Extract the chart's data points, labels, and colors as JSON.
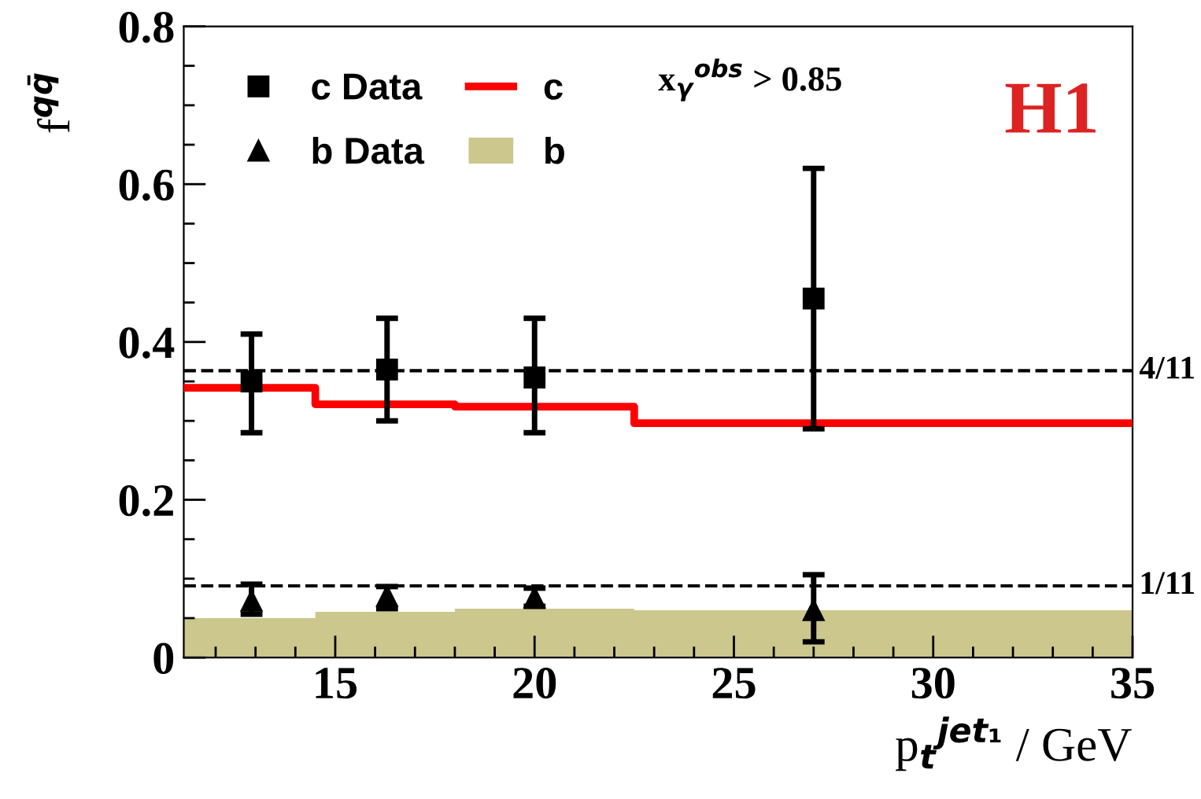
{
  "chart_data": {
    "type": "scatter",
    "ylabel": "f$^{qq̄}$",
    "xlabel": "p$_{t}$$^{jet₁}$ / GeV",
    "annotations": [
      "x$_{γ}$$^{obs}$ > 0.85",
      "H1",
      {
        "text": "4/11",
        "x": 35,
        "y": 0.363636
      },
      {
        "text": "1/11",
        "x": 35,
        "y": 0.090909
      }
    ],
    "xlim": [
      11.2,
      35
    ],
    "ylim": [
      0,
      0.8
    ],
    "xticks": [
      15,
      20,
      25,
      30,
      35
    ],
    "yticks": [
      0,
      0.2,
      0.4,
      0.6,
      0.8
    ],
    "grid": false,
    "legend": "top left",
    "ref_lines": [
      {
        "axis": "y",
        "value": 0.363636,
        "color": "#000000",
        "line_style": "dashed"
      },
      {
        "axis": "y",
        "value": 0.090909,
        "color": "#000000",
        "line_style": "dashed"
      }
    ],
    "series": [
      {
        "name": "c Data",
        "marker": "square",
        "color": "#000000",
        "x": [
          12.9,
          16.3,
          20,
          27
        ],
        "values": [
          0.35,
          0.365,
          0.355,
          0.455
        ],
        "errors": [
          [
            0.285,
            0.41
          ],
          [
            0.3,
            0.43
          ],
          [
            0.285,
            0.43
          ],
          [
            0.29,
            0.62
          ]
        ]
      },
      {
        "name": "c",
        "type": "step",
        "color": "#ff0000",
        "x": [
          11.2,
          14.5,
          18,
          22.5,
          35
        ],
        "values": [
          0.342,
          0.321,
          0.318,
          0.297,
          0.297
        ]
      },
      {
        "name": "b Data",
        "marker": "triangle",
        "color": "#000000",
        "x": [
          12.9,
          16.3,
          20,
          27
        ],
        "values": [
          0.072,
          0.078,
          0.076,
          0.06
        ],
        "errors": [
          [
            0.055,
            0.093
          ],
          [
            0.062,
            0.09
          ],
          [
            0.065,
            0.088
          ],
          [
            0.02,
            0.105
          ]
        ]
      },
      {
        "name": "b",
        "type": "area",
        "color": "#cbc78d",
        "x": [
          11.2,
          14.5,
          14.5,
          18,
          18,
          22.5,
          22.5,
          35
        ],
        "values": [
          0.05,
          0.05,
          0.058,
          0.058,
          0.062,
          0.062,
          0.06,
          0.06
        ]
      }
    ]
  }
}
